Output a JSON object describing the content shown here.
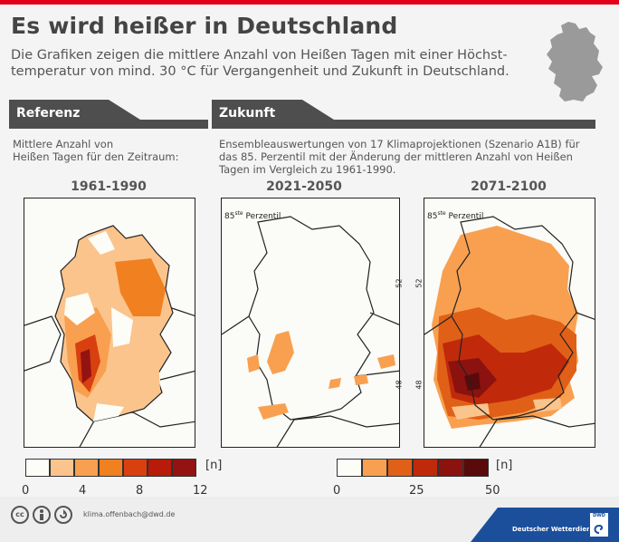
{
  "header": {
    "title": "Es wird heißer in Deutschland",
    "subtitle": "Die Grafiken zeigen die mittlere Anzahl von Heißen Tagen mit einer Höchst-temperatur von mind. 30 °C für Vergangenheit und Zukunft in Deutschland."
  },
  "sections": {
    "reference": {
      "label": "Referenz",
      "description_line1": "Mittlere Anzahl von",
      "description_line2": "Heißen Tagen für den Zeitraum:"
    },
    "future": {
      "label": "Zukunft",
      "description_line1": "Ensembleauswertungen von 17 Klimaprojektionen (Szenario A1B) für",
      "description_line2": "das 85. Perzentil mit der Änderung der mittleren Anzahl von Heißen",
      "description_line3": "Tagen im Vergleich zu 1961-1990."
    }
  },
  "maps": {
    "m1": {
      "period": "1961-1990"
    },
    "m2": {
      "period": "2021-2050",
      "perzentil_sup": "85",
      "perzentil_sup_suffix": "ste",
      "perzentil_word": "Perzentil",
      "lat_52": "52",
      "lat_48": "48"
    },
    "m3": {
      "period": "2071-2100",
      "perzentil_sup": "85",
      "perzentil_sup_suffix": "ste",
      "perzentil_word": "Perzentil",
      "lat_52": "52",
      "lat_48": "48"
    }
  },
  "legends": {
    "reference": {
      "unit": "[n]",
      "ticks": [
        "0",
        "4",
        "8",
        "12"
      ],
      "colors": [
        "#fdfdf8",
        "#fbc48c",
        "#f8a050",
        "#f08020",
        "#d84010",
        "#b81b0a",
        "#941212"
      ]
    },
    "future": {
      "unit": "[n]",
      "ticks": [
        "0",
        "25",
        "50"
      ],
      "colors": [
        "#fdfdf8",
        "#f8a050",
        "#e06018",
        "#c02a0a",
        "#8c1210",
        "#5a0a0a"
      ]
    }
  },
  "footer": {
    "license_icons": [
      "creative-commons-icon",
      "attribution-icon",
      "share-alike-icon"
    ],
    "cc_label": "cc",
    "email": "klima.offenbach@dwd.de",
    "org": "Deutscher Wetterdienst",
    "logo_text": "DWD"
  },
  "colors": {
    "accent_red": "#e3001b",
    "section_bar": "#4e4e4e",
    "dwd_blue": "#1b4f9c"
  }
}
